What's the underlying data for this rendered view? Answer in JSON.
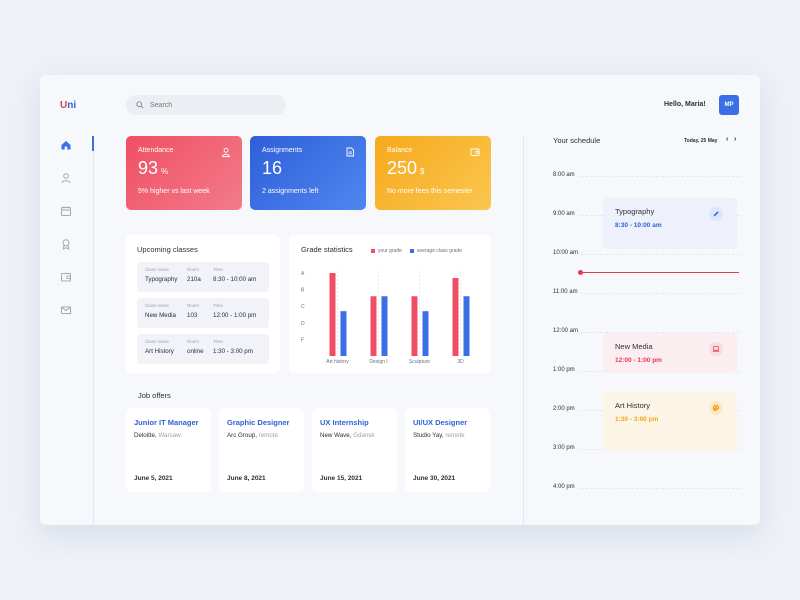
{
  "brand": {
    "u": "U",
    "ni": "ni"
  },
  "search": {
    "placeholder": "Search"
  },
  "header": {
    "greeting": "Hello, Maria!",
    "avatar_initials": "MP"
  },
  "nav": [
    "home-icon",
    "user-icon",
    "calendar-icon",
    "award-icon",
    "wallet-icon",
    "mail-icon"
  ],
  "stats": {
    "attendance": {
      "label": "Attendance",
      "value": "93",
      "unit": "%",
      "sub": "5% higher vs last week"
    },
    "assignments": {
      "label": "Assignments",
      "value": "16",
      "sub": "2 assignments left"
    },
    "balance": {
      "label": "Balance",
      "value": "250",
      "unit": "$",
      "sub": "No more fees this semester"
    }
  },
  "colors": {
    "red": "#ef4f64",
    "blue": "#3a6fe6",
    "orange": "#f6a91d"
  },
  "upcoming": {
    "title": "Upcoming classes",
    "headers": {
      "name": "Class name",
      "room": "Room",
      "time": "Time"
    },
    "rows": [
      {
        "name": "Typography",
        "room": "210a",
        "time": "8:30 - 10:00 am"
      },
      {
        "name": "New Media",
        "room": "103",
        "time": "12:00 - 1:00 pm"
      },
      {
        "name": "Art History",
        "room": "online",
        "time": "1:30 - 3:00 pm"
      }
    ]
  },
  "grades": {
    "title": "Grade statistics",
    "legend": {
      "yours": "your grade",
      "avg": "average class grade"
    }
  },
  "chart_data": {
    "type": "bar",
    "title": "Grade statistics",
    "categories": [
      "Art history",
      "Design I",
      "Sculpture",
      "3D"
    ],
    "y_labels": [
      "A",
      "B",
      "C",
      "D",
      "F"
    ],
    "y_scale": "A=5, B=4, C=3, D=2, F=1",
    "ylim": [
      0,
      5
    ],
    "series": [
      {
        "name": "your grade",
        "color": "#ef4f64",
        "values": [
          5,
          3.6,
          3.6,
          4.7
        ]
      },
      {
        "name": "average class grade",
        "color": "#3a6fe6",
        "values": [
          2.7,
          3.6,
          2.7,
          3.6
        ]
      }
    ],
    "legend": "top"
  },
  "jobs": {
    "title": "Job offers",
    "items": [
      {
        "title": "Junior IT Manager",
        "company": "Deloitte,",
        "location": "Warsaw",
        "date": "June 5, 2021"
      },
      {
        "title": "Graphic Designer",
        "company": "Arc Group,",
        "location": "remote",
        "date": "June 8, 2021"
      },
      {
        "title": "UX Internship",
        "company": "New Wave,",
        "location": "Gdansk",
        "date": "June 15, 2021"
      },
      {
        "title": "UI/UX Designer",
        "company": "Studio Yay,",
        "location": "remote",
        "date": "June 30, 2021"
      }
    ]
  },
  "schedule": {
    "title": "Your schedule",
    "date": "Today, 25 May",
    "prev": "‹",
    "next": "›",
    "times": [
      "8:00 am",
      "9:00 am",
      "10:00 am",
      "11:00 am",
      "12:00 am",
      "1:00 pm",
      "2:00 pm",
      "3:00 pm",
      "4:00 pm"
    ],
    "events": [
      {
        "name": "Typography",
        "time": "8:30 - 10:00 am",
        "icon": "pencil-icon"
      },
      {
        "name": "New Media",
        "time": "12:00 - 1:00 pm",
        "icon": "laptop-icon"
      },
      {
        "name": "Art History",
        "time": "1:30 - 3:00 pm",
        "icon": "palette-icon"
      }
    ]
  }
}
